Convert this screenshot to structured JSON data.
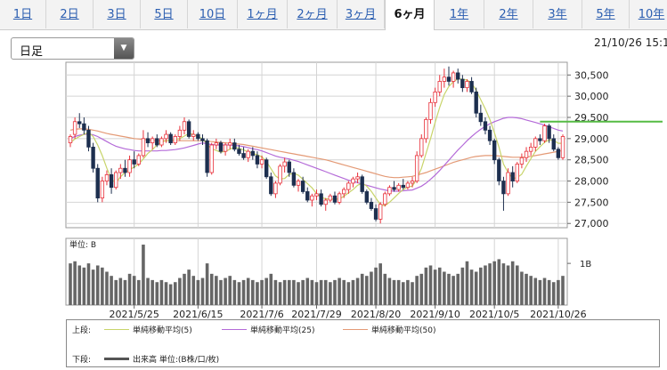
{
  "tabs": [
    {
      "label": "1日",
      "active": false
    },
    {
      "label": "2日",
      "active": false
    },
    {
      "label": "3日",
      "active": false
    },
    {
      "label": "5日",
      "active": false
    },
    {
      "label": "10日",
      "active": false
    },
    {
      "label": "1ヶ月",
      "active": false
    },
    {
      "label": "2ヶ月",
      "active": false
    },
    {
      "label": "3ヶ月",
      "active": false
    },
    {
      "label": "6ヶ月",
      "active": true
    },
    {
      "label": "1年",
      "active": false
    },
    {
      "label": "2年",
      "active": false
    },
    {
      "label": "3年",
      "active": false
    },
    {
      "label": "5年",
      "active": false
    },
    {
      "label": "10年",
      "active": false
    }
  ],
  "period_select": {
    "value": "日足"
  },
  "datetime": "21/10/26 15:1",
  "legend": {
    "upper_label": "上段:",
    "lower_label": "下段:",
    "items": [
      {
        "label": "単純移動平均(5)",
        "color": "#c8d46a"
      },
      {
        "label": "単純移動平均(25)",
        "color": "#b46ad8"
      },
      {
        "label": "単純移動平均(50)",
        "color": "#e49a76"
      }
    ],
    "volume_label": "出来高 単位:(B株/口/枚)"
  },
  "colors": {
    "up": "#e8303a",
    "down": "#1d2f4f",
    "volume": "#666666",
    "reference": "#55bb44"
  },
  "chart_data": {
    "type": "candlestick",
    "x_ticks": [
      "2021/5/25",
      "2021/6/15",
      "2021/7/6",
      "2021/7/29",
      "2021/8/20",
      "2021/9/10",
      "2021/10/5",
      "2021/10/26"
    ],
    "y_ticks": [
      27000,
      27500,
      28000,
      28500,
      29000,
      29500,
      30000,
      30500
    ],
    "ylim": [
      26900,
      30800
    ],
    "reference_level": 29400,
    "volume_panel": {
      "unit_label": "単位: B",
      "tick_label": "1B",
      "ylim": [
        0,
        1.6
      ]
    },
    "candles": [
      [
        28900,
        29100,
        28800,
        29050
      ],
      [
        29100,
        29500,
        29000,
        29400
      ],
      [
        29400,
        29600,
        29250,
        29350
      ],
      [
        29350,
        29500,
        29100,
        29200
      ],
      [
        29200,
        29300,
        28700,
        28800
      ],
      [
        28800,
        28900,
        28200,
        28300
      ],
      [
        28300,
        28400,
        27500,
        27600
      ],
      [
        27600,
        28100,
        27500,
        28000
      ],
      [
        28000,
        28250,
        27900,
        28150
      ],
      [
        28150,
        28300,
        27700,
        27850
      ],
      [
        27850,
        28250,
        27800,
        28200
      ],
      [
        28200,
        28400,
        28050,
        28300
      ],
      [
        28300,
        28500,
        28100,
        28200
      ],
      [
        28200,
        28600,
        28100,
        28500
      ],
      [
        28500,
        28700,
        28300,
        28400
      ],
      [
        28400,
        28650,
        28350,
        28600
      ],
      [
        28600,
        29200,
        28550,
        29000
      ],
      [
        29000,
        29150,
        28800,
        28900
      ],
      [
        28900,
        29050,
        28750,
        29000
      ],
      [
        29000,
        29100,
        28800,
        28850
      ],
      [
        28850,
        29050,
        28800,
        29000
      ],
      [
        29000,
        29200,
        28900,
        29100
      ],
      [
        29100,
        29150,
        28850,
        28900
      ],
      [
        28900,
        29100,
        28850,
        29050
      ],
      [
        29050,
        29300,
        28950,
        29200
      ],
      [
        29200,
        29500,
        29100,
        29400
      ],
      [
        29400,
        29450,
        29000,
        29050
      ],
      [
        29050,
        29200,
        28950,
        29100
      ],
      [
        29100,
        29150,
        28950,
        29000
      ],
      [
        29000,
        29100,
        28850,
        28950
      ],
      [
        28950,
        29000,
        28100,
        28200
      ],
      [
        28200,
        28900,
        28150,
        28850
      ],
      [
        28850,
        29000,
        28750,
        28900
      ],
      [
        28900,
        28950,
        28650,
        28700
      ],
      [
        28700,
        28900,
        28600,
        28850
      ],
      [
        28850,
        29000,
        28750,
        28900
      ],
      [
        28900,
        29000,
        28700,
        28750
      ],
      [
        28750,
        28850,
        28600,
        28650
      ],
      [
        28650,
        28800,
        28500,
        28550
      ],
      [
        28550,
        28750,
        28450,
        28700
      ],
      [
        28700,
        28800,
        28500,
        28600
      ],
      [
        28600,
        28700,
        28300,
        28400
      ],
      [
        28400,
        28600,
        28300,
        28500
      ],
      [
        28500,
        28550,
        28050,
        28100
      ],
      [
        28100,
        28200,
        27650,
        27700
      ],
      [
        27700,
        28000,
        27600,
        27950
      ],
      [
        27950,
        28400,
        27900,
        28350
      ],
      [
        28350,
        28550,
        28200,
        28450
      ],
      [
        28450,
        28500,
        28100,
        28200
      ],
      [
        28200,
        28300,
        27850,
        27900
      ],
      [
        27900,
        28050,
        27750,
        28000
      ],
      [
        28000,
        28100,
        27700,
        27750
      ],
      [
        27750,
        27850,
        27500,
        27550
      ],
      [
        27550,
        27700,
        27400,
        27650
      ],
      [
        27650,
        27800,
        27550,
        27700
      ],
      [
        27700,
        27800,
        27400,
        27450
      ],
      [
        27450,
        27600,
        27300,
        27550
      ],
      [
        27550,
        27700,
        27500,
        27650
      ],
      [
        27650,
        27750,
        27450,
        27500
      ],
      [
        27500,
        27750,
        27450,
        27700
      ],
      [
        27700,
        27850,
        27600,
        27800
      ],
      [
        27800,
        28000,
        27700,
        27950
      ],
      [
        27950,
        28100,
        27850,
        28050
      ],
      [
        28050,
        28200,
        27950,
        28100
      ],
      [
        28100,
        28150,
        27700,
        27750
      ],
      [
        27750,
        27800,
        27450,
        27500
      ],
      [
        27500,
        27600,
        27300,
        27350
      ],
      [
        27350,
        27450,
        27050,
        27100
      ],
      [
        27100,
        27500,
        27000,
        27450
      ],
      [
        27450,
        27750,
        27400,
        27700
      ],
      [
        27700,
        27900,
        27650,
        27850
      ],
      [
        27850,
        28000,
        27750,
        27800
      ],
      [
        27800,
        27950,
        27750,
        27900
      ],
      [
        27900,
        28050,
        27800,
        27850
      ],
      [
        27850,
        28000,
        27800,
        27950
      ],
      [
        27950,
        28100,
        27850,
        28000
      ],
      [
        28000,
        28700,
        27950,
        28600
      ],
      [
        28600,
        29100,
        28550,
        29000
      ],
      [
        29000,
        29500,
        28900,
        29450
      ],
      [
        29450,
        29950,
        29350,
        29850
      ],
      [
        29850,
        30200,
        29750,
        30100
      ],
      [
        30100,
        30500,
        30000,
        30350
      ],
      [
        30350,
        30650,
        30200,
        30450
      ],
      [
        30450,
        30700,
        30250,
        30350
      ],
      [
        30350,
        30600,
        30200,
        30550
      ],
      [
        30550,
        30650,
        30300,
        30400
      ],
      [
        30400,
        30500,
        30100,
        30200
      ],
      [
        30200,
        30400,
        30100,
        30350
      ],
      [
        30350,
        30450,
        30050,
        30100
      ],
      [
        30100,
        30200,
        29500,
        29600
      ],
      [
        29600,
        29800,
        29300,
        29400
      ],
      [
        29400,
        29500,
        29100,
        29200
      ],
      [
        29200,
        29300,
        28850,
        28950
      ],
      [
        28950,
        29000,
        28400,
        28500
      ],
      [
        28500,
        28550,
        27900,
        28000
      ],
      [
        28000,
        28100,
        27300,
        27700
      ],
      [
        27700,
        28300,
        27650,
        28200
      ],
      [
        28200,
        28350,
        27850,
        28000
      ],
      [
        28000,
        28450,
        27950,
        28400
      ],
      [
        28400,
        28650,
        28300,
        28550
      ],
      [
        28550,
        28800,
        28450,
        28700
      ],
      [
        28700,
        28900,
        28600,
        28800
      ],
      [
        28800,
        29050,
        28700,
        29000
      ],
      [
        29000,
        29100,
        28850,
        28950
      ],
      [
        28950,
        29350,
        28900,
        29300
      ],
      [
        29300,
        29350,
        28900,
        29000
      ],
      [
        29000,
        29100,
        28700,
        28750
      ],
      [
        28750,
        28800,
        28500,
        28550
      ],
      [
        28550,
        29100,
        28500,
        29050
      ]
    ],
    "ma5": [
      28900,
      28990,
      29050,
      29100,
      29150,
      29050,
      28850,
      28600,
      28300,
      28050,
      27950,
      28100,
      28200,
      28270,
      28330,
      28400,
      28520,
      28650,
      28740,
      28850,
      28920,
      28950,
      28960,
      28980,
      29000,
      29060,
      29120,
      29100,
      29050,
      29000,
      28860,
      28760,
      28720,
      28680,
      28700,
      28750,
      28800,
      28770,
      28730,
      28690,
      28650,
      28620,
      28570,
      28460,
      28290,
      28120,
      28050,
      28060,
      28160,
      28180,
      28140,
      28040,
      27940,
      27840,
      27700,
      27620,
      27580,
      27580,
      27570,
      27580,
      27640,
      27720,
      27800,
      27900,
      27950,
      27880,
      27760,
      27600,
      27440,
      27420,
      27500,
      27600,
      27710,
      27800,
      27860,
      27880,
      28050,
      28300,
      28650,
      29000,
      29380,
      29740,
      30040,
      30230,
      30340,
      30410,
      30400,
      30380,
      30310,
      30140,
      29920,
      29700,
      29450,
      29140,
      28800,
      28400,
      28200,
      28060,
      28080,
      28160,
      28350,
      28530,
      28700,
      28810,
      28910,
      28970,
      28960,
      28890,
      28890
    ],
    "ma25": [
      29000,
      29050,
      29080,
      29100,
      29110,
      29090,
      29050,
      28990,
      28930,
      28870,
      28820,
      28790,
      28760,
      28740,
      28720,
      28710,
      28710,
      28710,
      28710,
      28710,
      28720,
      28720,
      28730,
      28740,
      28760,
      28780,
      28810,
      28840,
      28870,
      28900,
      28880,
      28860,
      28850,
      28850,
      28850,
      28850,
      28840,
      28830,
      28810,
      28790,
      28760,
      28740,
      28710,
      28670,
      28630,
      28590,
      28560,
      28540,
      28520,
      28490,
      28460,
      28420,
      28380,
      28340,
      28300,
      28260,
      28220,
      28180,
      28140,
      28100,
      28060,
      28020,
      27990,
      27960,
      27930,
      27900,
      27870,
      27840,
      27810,
      27790,
      27770,
      27760,
      27760,
      27770,
      27780,
      27790,
      27830,
      27880,
      27950,
      28040,
      28140,
      28250,
      28370,
      28490,
      28610,
      28730,
      28840,
      28950,
      29050,
      29140,
      29220,
      29290,
      29350,
      29400,
      29440,
      29480,
      29500,
      29500,
      29490,
      29470,
      29440,
      29410,
      29380,
      29350,
      29320,
      29280,
      29240,
      29200,
      29180
    ],
    "ma50": [
      29200,
      29220,
      29230,
      29230,
      29220,
      29200,
      29180,
      29150,
      29120,
      29100,
      29080,
      29060,
      29040,
      29020,
      29000,
      28990,
      28980,
      28970,
      28960,
      28950,
      28950,
      28950,
      28950,
      28950,
      28950,
      28950,
      28950,
      28950,
      28950,
      28950,
      28940,
      28930,
      28920,
      28910,
      28900,
      28890,
      28880,
      28870,
      28860,
      28840,
      28820,
      28800,
      28780,
      28760,
      28740,
      28720,
      28700,
      28680,
      28660,
      28640,
      28620,
      28600,
      28580,
      28560,
      28540,
      28520,
      28500,
      28470,
      28440,
      28410,
      28380,
      28350,
      28320,
      28290,
      28260,
      28230,
      28200,
      28170,
      28140,
      28110,
      28090,
      28080,
      28080,
      28090,
      28100,
      28110,
      28140,
      28170,
      28200,
      28240,
      28280,
      28320,
      28360,
      28400,
      28440,
      28470,
      28500,
      28530,
      28560,
      28580,
      28590,
      28600,
      28600,
      28600,
      28590,
      28580,
      28570,
      28560,
      28560,
      28560,
      28570,
      28580,
      28600,
      28620,
      28640,
      28660,
      28680,
      28700,
      28720
    ],
    "volume": [
      1.0,
      1.05,
      0.95,
      0.9,
      1.0,
      0.85,
      0.95,
      0.9,
      0.8,
      0.7,
      0.6,
      0.65,
      0.6,
      0.75,
      0.7,
      0.6,
      1.45,
      0.65,
      0.6,
      0.55,
      0.6,
      0.55,
      0.5,
      0.55,
      0.65,
      0.75,
      0.85,
      0.7,
      0.6,
      0.65,
      1.0,
      0.75,
      0.7,
      0.6,
      0.65,
      0.7,
      0.6,
      0.55,
      0.6,
      0.65,
      0.6,
      0.55,
      0.6,
      0.65,
      0.75,
      0.6,
      0.55,
      0.6,
      0.6,
      0.6,
      0.55,
      0.6,
      0.65,
      0.6,
      0.55,
      0.6,
      0.6,
      0.55,
      0.6,
      0.65,
      0.6,
      0.55,
      0.6,
      0.65,
      0.75,
      0.7,
      0.8,
      0.9,
      1.0,
      0.75,
      0.65,
      0.6,
      0.6,
      0.55,
      0.6,
      0.55,
      0.7,
      0.75,
      0.9,
      0.95,
      0.85,
      0.9,
      0.8,
      0.75,
      0.7,
      0.75,
      0.9,
      1.05,
      0.85,
      0.8,
      0.9,
      0.95,
      1.0,
      1.05,
      1.1,
      1.0,
      0.95,
      1.05,
      0.95,
      0.8,
      0.75,
      0.7,
      0.65,
      0.6,
      0.65,
      0.6,
      0.55,
      0.6,
      0.7
    ]
  }
}
